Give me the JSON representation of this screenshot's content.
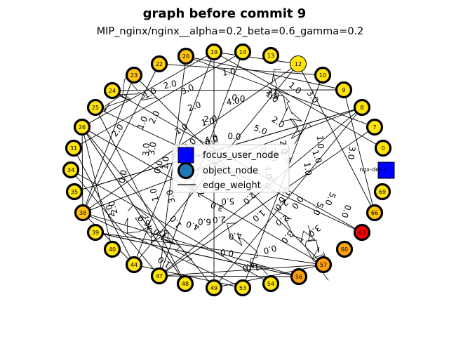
{
  "title": "graph before commit 9",
  "subtitle": "MIP_nginx/nginx__alpha=0.2_beta=0.6_gamma=0.2",
  "legend": {
    "items": [
      {
        "label": "focus_user_node",
        "marker": "square",
        "color": "#0000ff"
      },
      {
        "label": "object_node",
        "marker": "circle",
        "color": "#1f77b4"
      },
      {
        "label": "edge_weight",
        "marker": "line",
        "color": "#000000"
      }
    ]
  },
  "colors": {
    "yellow": "#ffe30f",
    "orange": "#ff9f0f",
    "red": "#ff0000",
    "focus": "#0000ff"
  },
  "focus_node": {
    "label": "ngx-dev.r",
    "color": "#0000ff"
  },
  "nodes": [
    {
      "id": "0",
      "color": "#ffe30f",
      "thick": true
    },
    {
      "id": "7",
      "color": "#ffe30f",
      "thick": true
    },
    {
      "id": "8",
      "color": "#ffe30f",
      "thick": true
    },
    {
      "id": "9",
      "color": "#ffe30f",
      "thick": true
    },
    {
      "id": "10",
      "color": "#ffe30f",
      "thick": true
    },
    {
      "id": "12",
      "color": "#ffe30f",
      "thick": false
    },
    {
      "id": "13",
      "color": "#ffe30f",
      "thick": true
    },
    {
      "id": "14",
      "color": "#ffe30f",
      "thick": true
    },
    {
      "id": "19",
      "color": "#ffe30f",
      "thick": true
    },
    {
      "id": "20",
      "color": "#ffc20f",
      "thick": true
    },
    {
      "id": "22",
      "color": "#ffd00f",
      "thick": true
    },
    {
      "id": "23",
      "color": "#ffc20f",
      "thick": true
    },
    {
      "id": "24",
      "color": "#ffe30f",
      "thick": true
    },
    {
      "id": "25",
      "color": "#ffe30f",
      "thick": true
    },
    {
      "id": "26",
      "color": "#ffe30f",
      "thick": true
    },
    {
      "id": "31",
      "color": "#ffe30f",
      "thick": true
    },
    {
      "id": "34",
      "color": "#ffe30f",
      "thick": true
    },
    {
      "id": "35",
      "color": "#ffe30f",
      "thick": true
    },
    {
      "id": "38",
      "color": "#ffc20f",
      "thick": true
    },
    {
      "id": "39",
      "color": "#ffe30f",
      "thick": true
    },
    {
      "id": "40",
      "color": "#ffe30f",
      "thick": true
    },
    {
      "id": "44",
      "color": "#ffe30f",
      "thick": true
    },
    {
      "id": "47",
      "color": "#ffe30f",
      "thick": true
    },
    {
      "id": "48",
      "color": "#ffe30f",
      "thick": true
    },
    {
      "id": "49",
      "color": "#ffe30f",
      "thick": true
    },
    {
      "id": "53",
      "color": "#ffe30f",
      "thick": true
    },
    {
      "id": "54",
      "color": "#ffe30f",
      "thick": true
    },
    {
      "id": "56",
      "color": "#ff9f0f",
      "thick": true
    },
    {
      "id": "57",
      "color": "#ff9f0f",
      "thick": true
    },
    {
      "id": "60",
      "color": "#ffa50f",
      "thick": true
    },
    {
      "id": "63",
      "color": "#ff0000",
      "thick": true
    },
    {
      "id": "66",
      "color": "#ffc20f",
      "thick": true
    },
    {
      "id": "69",
      "color": "#ffe30f",
      "thick": true
    }
  ],
  "edge_labels": [
    "1.0",
    "2.0",
    "0.0",
    "3.0",
    "4.0",
    "5.0",
    "6.0",
    "4.0",
    "1.0",
    "2.0",
    "0.0",
    "1.0",
    "3.0",
    "2.0",
    "1.0",
    "0.0",
    "2.0",
    "4.0",
    "1.0",
    "3.0",
    "0.0",
    "2.0",
    "1.0",
    "5.0",
    "3.0",
    "2.0",
    "1.0",
    "4.0",
    "0.0",
    "1.0",
    "2.0",
    "3.0",
    "1.0",
    "0.0",
    "2.0",
    "4.0",
    "1.0",
    "2.0",
    "3.0",
    "1.0",
    "0.0",
    "5.0",
    "2.0",
    "1.0",
    "3.0",
    "4.0",
    "1.0",
    "2.0",
    "0.0",
    "1.0",
    "3.0",
    "2.0",
    "1.0",
    "6.0",
    "2.0",
    "1.0",
    "0.0",
    "3.0",
    "1.0",
    "2.0",
    "4.0",
    "1.0",
    "0.0",
    "2.0",
    "1.0",
    "3.0",
    "2.0",
    "1.0",
    "5.0",
    "0.0"
  ]
}
